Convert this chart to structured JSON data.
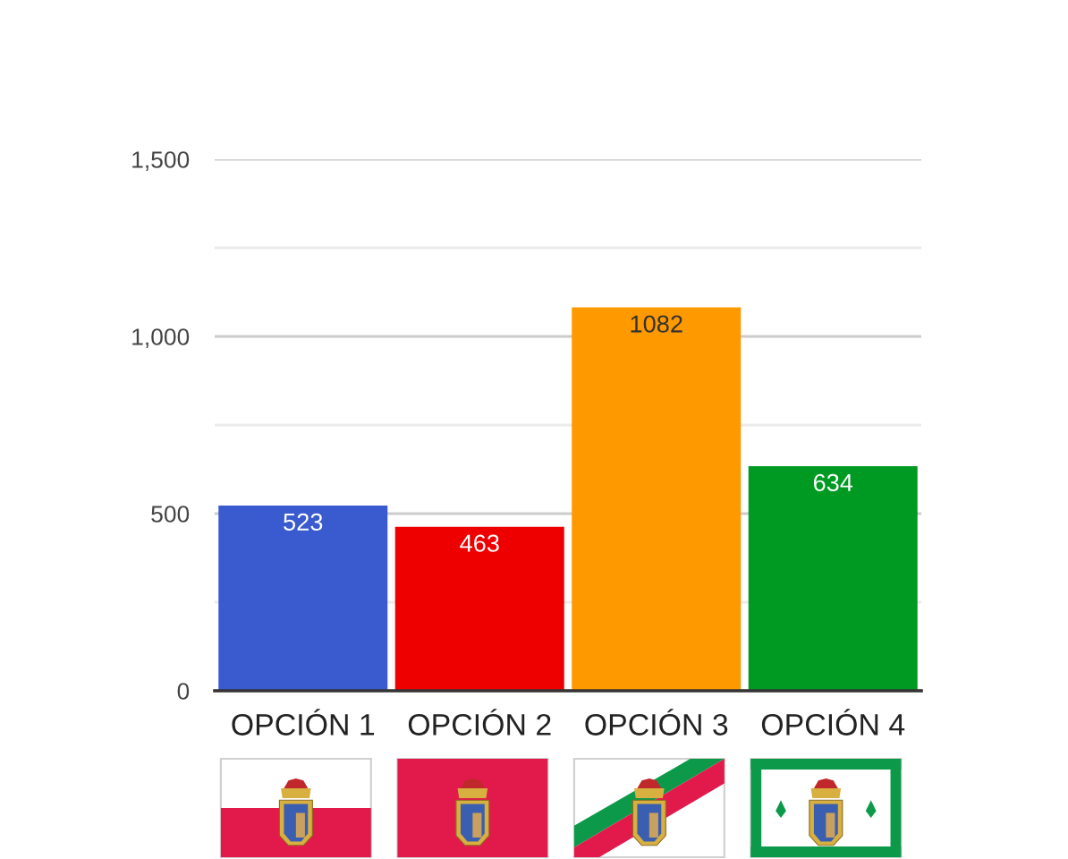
{
  "chart_data": {
    "type": "bar",
    "categories": [
      "OPCIÓN 1",
      "OPCIÓN 2",
      "OPCIÓN 3",
      "OPCIÓN 4"
    ],
    "values": [
      523,
      463,
      1082,
      634
    ],
    "colors": [
      "#3a5bcf",
      "#ee0000",
      "#ff9900",
      "#009a22"
    ],
    "ylim": [
      0,
      1500
    ],
    "yticks": [
      0,
      {
        "value": 250,
        "label": null
      },
      500,
      {
        "value": 750,
        "label": null
      },
      {
        "value": 1000,
        "label": "1,000"
      },
      {
        "value": 1250,
        "label": null
      },
      {
        "value": 1500,
        "label": "1,500"
      }
    ],
    "grid": "y",
    "data_labels": true
  }
}
